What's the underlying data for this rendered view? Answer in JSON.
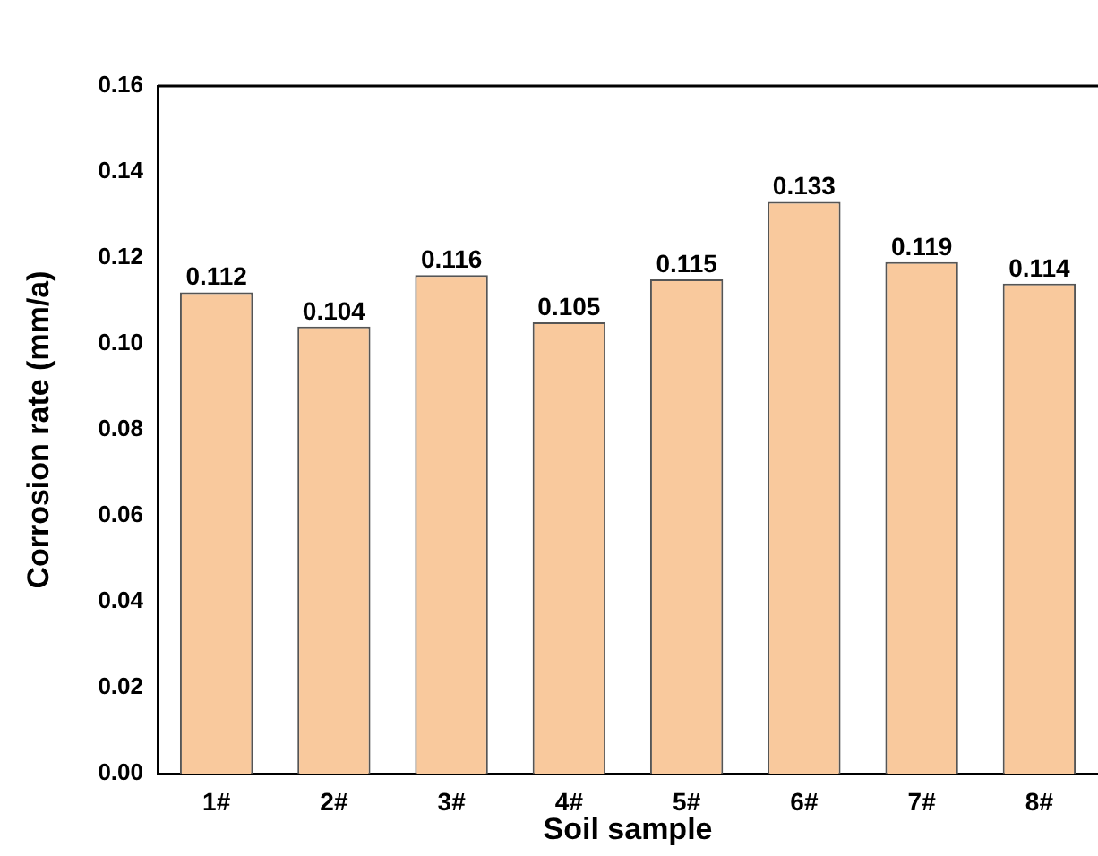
{
  "chart_data": {
    "type": "bar",
    "xlabel": "Soil sample",
    "ylabel": "Corrosion rate (mm/a)",
    "categories": [
      "1#",
      "2#",
      "3#",
      "4#",
      "5#",
      "6#",
      "7#",
      "8#"
    ],
    "values": [
      0.112,
      0.104,
      0.116,
      0.105,
      0.115,
      0.133,
      0.119,
      0.114
    ],
    "color": "#f9c99d",
    "ylim": [
      0,
      0.16
    ],
    "yticks": [
      {
        "value": 0,
        "label": "0.00"
      },
      0.02,
      0.04,
      0.06,
      0.08,
      {
        "value": 0.1,
        "label": "0.10"
      },
      0.12,
      0.14,
      0.16
    ],
    "grid": false,
    "legend": false,
    "data_labels": true
  }
}
